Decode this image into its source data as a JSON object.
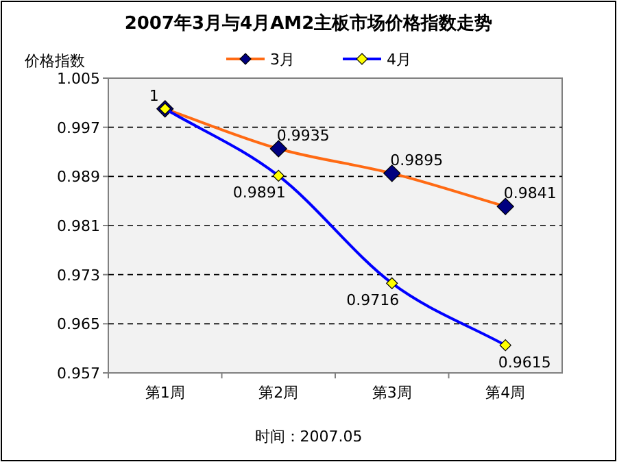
{
  "chart_data": {
    "type": "line",
    "title": "2007年3月与4月AM2主板市场价格指数走势",
    "ylabel": "价格指数",
    "categories": [
      "第1周",
      "第2周",
      "第3周",
      "第4周"
    ],
    "series": [
      {
        "name": "3月",
        "color": "#ff6a13",
        "values": [
          1,
          0.9935,
          0.9895,
          0.9841
        ],
        "value_labels": [
          null,
          "0.9935",
          "0.9895",
          "0.9841"
        ]
      },
      {
        "name": "4月",
        "color": "#0000ff",
        "values": [
          1,
          0.9891,
          0.9716,
          0.9615
        ],
        "value_labels": [
          "1",
          "0.9891",
          "0.9716",
          "0.9615"
        ]
      }
    ],
    "ylim": [
      0.957,
      1.005
    ],
    "yticks": [
      0.957,
      0.965,
      0.973,
      0.981,
      0.989,
      0.997,
      1.005
    ],
    "grid": "y",
    "legend": "top",
    "marker": "diamond",
    "line_style": "solid",
    "annotations": [
      "时间：2007.05"
    ]
  }
}
